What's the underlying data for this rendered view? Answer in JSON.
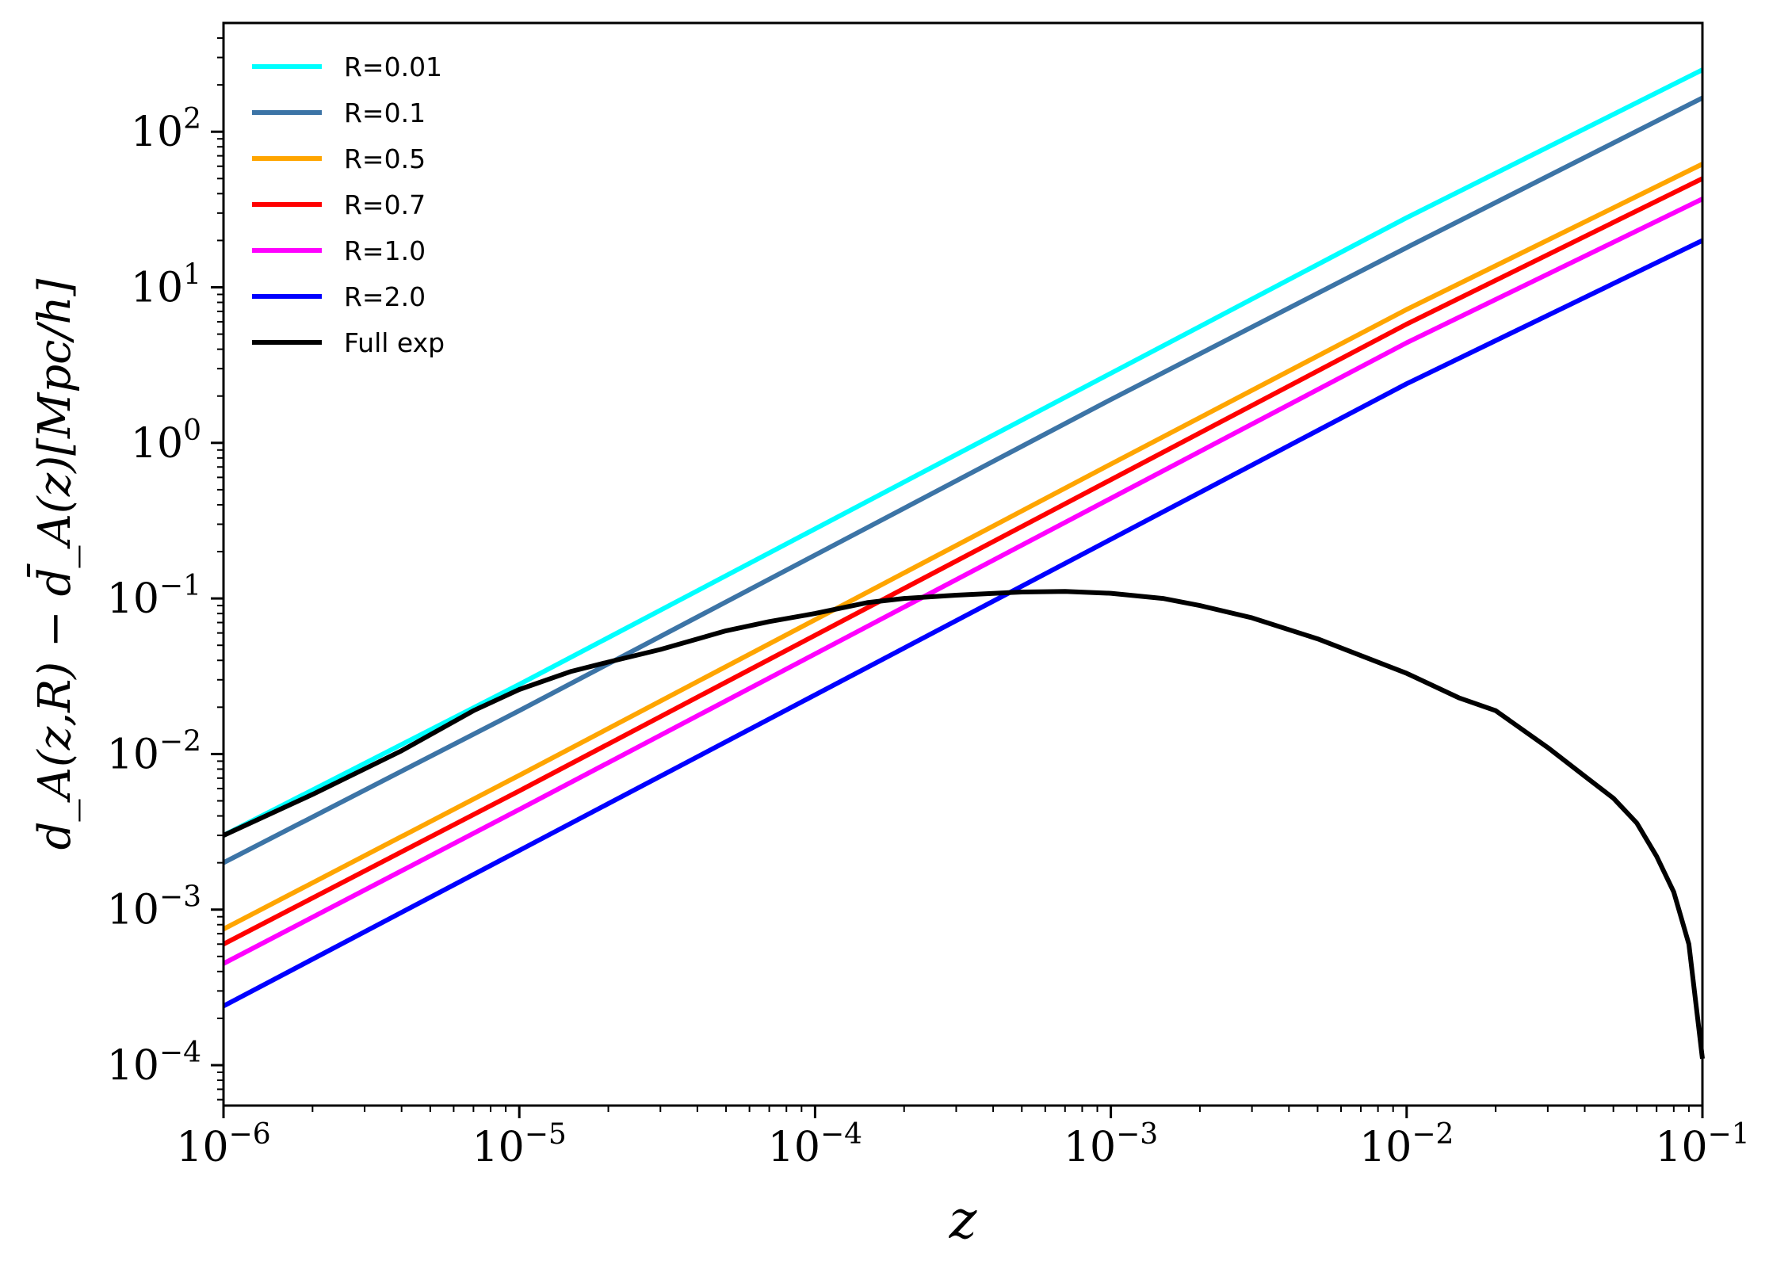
{
  "chart_data": {
    "type": "line",
    "title": "",
    "xlabel": "z",
    "ylabel": "d_A(z,R) − d̄_A(z)[Mpc/h]",
    "xscale": "log",
    "yscale": "log",
    "xlim": [
      1e-06,
      0.1
    ],
    "ylim": [
      5.5e-05,
      500
    ],
    "grid": false,
    "legend_position": "top-left",
    "x_ticks": [
      {
        "base": "10",
        "exp": "−6",
        "value": 1e-06
      },
      {
        "base": "10",
        "exp": "−5",
        "value": 1e-05
      },
      {
        "base": "10",
        "exp": "−4",
        "value": 0.0001
      },
      {
        "base": "10",
        "exp": "−3",
        "value": 0.001
      },
      {
        "base": "10",
        "exp": "−2",
        "value": 0.01
      },
      {
        "base": "10",
        "exp": "−1",
        "value": 0.1
      }
    ],
    "y_ticks": [
      {
        "base": "10",
        "exp": "−4",
        "value": 0.0001
      },
      {
        "base": "10",
        "exp": "−3",
        "value": 0.001
      },
      {
        "base": "10",
        "exp": "−2",
        "value": 0.01
      },
      {
        "base": "10",
        "exp": "−1",
        "value": 0.1
      },
      {
        "base": "10",
        "exp": "0",
        "value": 1
      },
      {
        "base": "10",
        "exp": "1",
        "value": 10
      },
      {
        "base": "10",
        "exp": "2",
        "value": 100
      }
    ],
    "series": [
      {
        "name": "R=0.01",
        "color": "#00ffff",
        "x": [
          1e-06,
          1e-05,
          0.0001,
          0.001,
          0.01,
          0.1
        ],
        "y": [
          0.003,
          0.028,
          0.28,
          2.8,
          28,
          250
        ]
      },
      {
        "name": "R=0.1",
        "color": "#3c74a6",
        "x": [
          1e-06,
          1e-05,
          0.0001,
          0.001,
          0.01,
          0.1
        ],
        "y": [
          0.002,
          0.019,
          0.19,
          1.9,
          18,
          165
        ]
      },
      {
        "name": "R=0.5",
        "color": "#ffa500",
        "x": [
          1e-06,
          1e-05,
          0.0001,
          0.001,
          0.01,
          0.1
        ],
        "y": [
          0.00075,
          0.0073,
          0.073,
          0.73,
          7.2,
          62
        ]
      },
      {
        "name": "R=0.7",
        "color": "#ff0000",
        "x": [
          1e-06,
          1e-05,
          0.0001,
          0.001,
          0.01,
          0.1
        ],
        "y": [
          0.0006,
          0.0058,
          0.058,
          0.58,
          5.8,
          50
        ]
      },
      {
        "name": "R=1.0",
        "color": "#ff00ff",
        "x": [
          1e-06,
          1e-05,
          0.0001,
          0.001,
          0.01,
          0.1
        ],
        "y": [
          0.00045,
          0.0044,
          0.044,
          0.44,
          4.4,
          37
        ]
      },
      {
        "name": "R=2.0",
        "color": "#0000ff",
        "x": [
          1e-06,
          1e-05,
          0.0001,
          0.001,
          0.01,
          0.1
        ],
        "y": [
          0.00024,
          0.0024,
          0.024,
          0.24,
          2.4,
          20
        ]
      },
      {
        "name": "Full exp",
        "color": "#000000",
        "x": [
          1e-06,
          2e-06,
          4e-06,
          7e-06,
          1e-05,
          1.5e-05,
          2e-05,
          3e-05,
          5e-05,
          7e-05,
          0.0001,
          0.00015,
          0.0002,
          0.0003,
          0.0005,
          0.0007,
          0.001,
          0.0015,
          0.002,
          0.003,
          0.005,
          0.01,
          0.015,
          0.02,
          0.03,
          0.04,
          0.05,
          0.06,
          0.07,
          0.08,
          0.09,
          0.1
        ],
        "y": [
          0.003,
          0.0055,
          0.0105,
          0.019,
          0.026,
          0.034,
          0.039,
          0.047,
          0.062,
          0.071,
          0.08,
          0.094,
          0.1,
          0.105,
          0.11,
          0.111,
          0.108,
          0.1,
          0.09,
          0.075,
          0.055,
          0.033,
          0.023,
          0.019,
          0.011,
          0.0072,
          0.0052,
          0.0036,
          0.0022,
          0.0013,
          0.0006,
          0.00011
        ]
      }
    ]
  }
}
